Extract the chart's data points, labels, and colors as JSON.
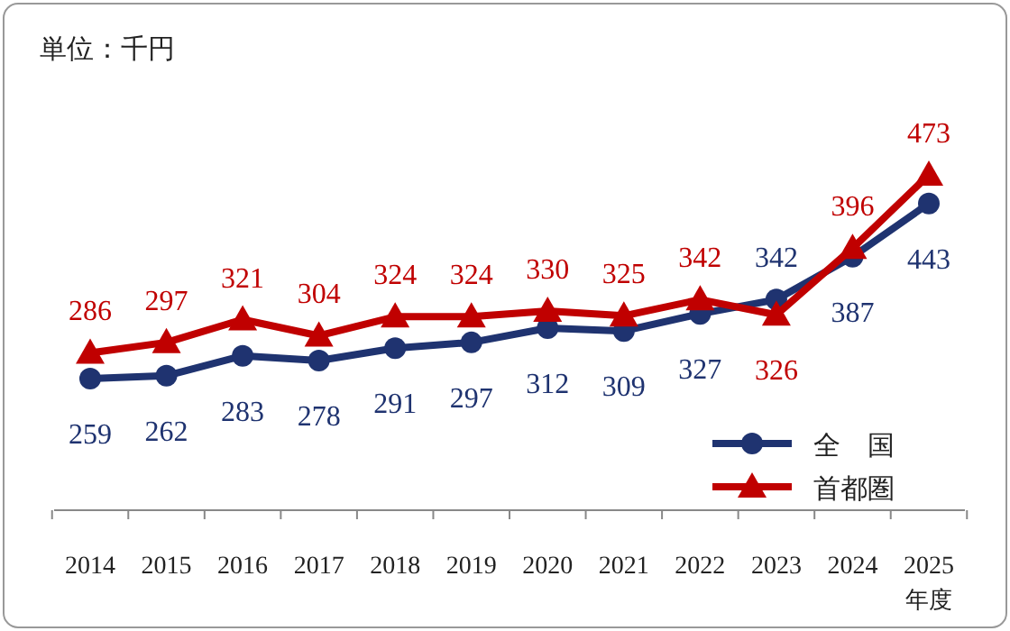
{
  "chart_data": {
    "type": "line",
    "annotations": [
      "単位：千円"
    ],
    "xlabel": "年度",
    "categories": [
      "2014",
      "2015",
      "2016",
      "2017",
      "2018",
      "2019",
      "2020",
      "2021",
      "2022",
      "2023",
      "2024",
      "2025"
    ],
    "series": [
      {
        "name": "全　国",
        "color": "#1f3370",
        "marker": "circle",
        "values": [
          259,
          262,
          283,
          278,
          291,
          297,
          312,
          309,
          327,
          342,
          387,
          443
        ]
      },
      {
        "name": "首都圏",
        "color": "#c00000",
        "marker": "triangle",
        "values": [
          286,
          297,
          321,
          304,
          324,
          324,
          330,
          325,
          342,
          326,
          396,
          473
        ]
      }
    ],
    "data_labels": true,
    "legend": "bottom right"
  }
}
